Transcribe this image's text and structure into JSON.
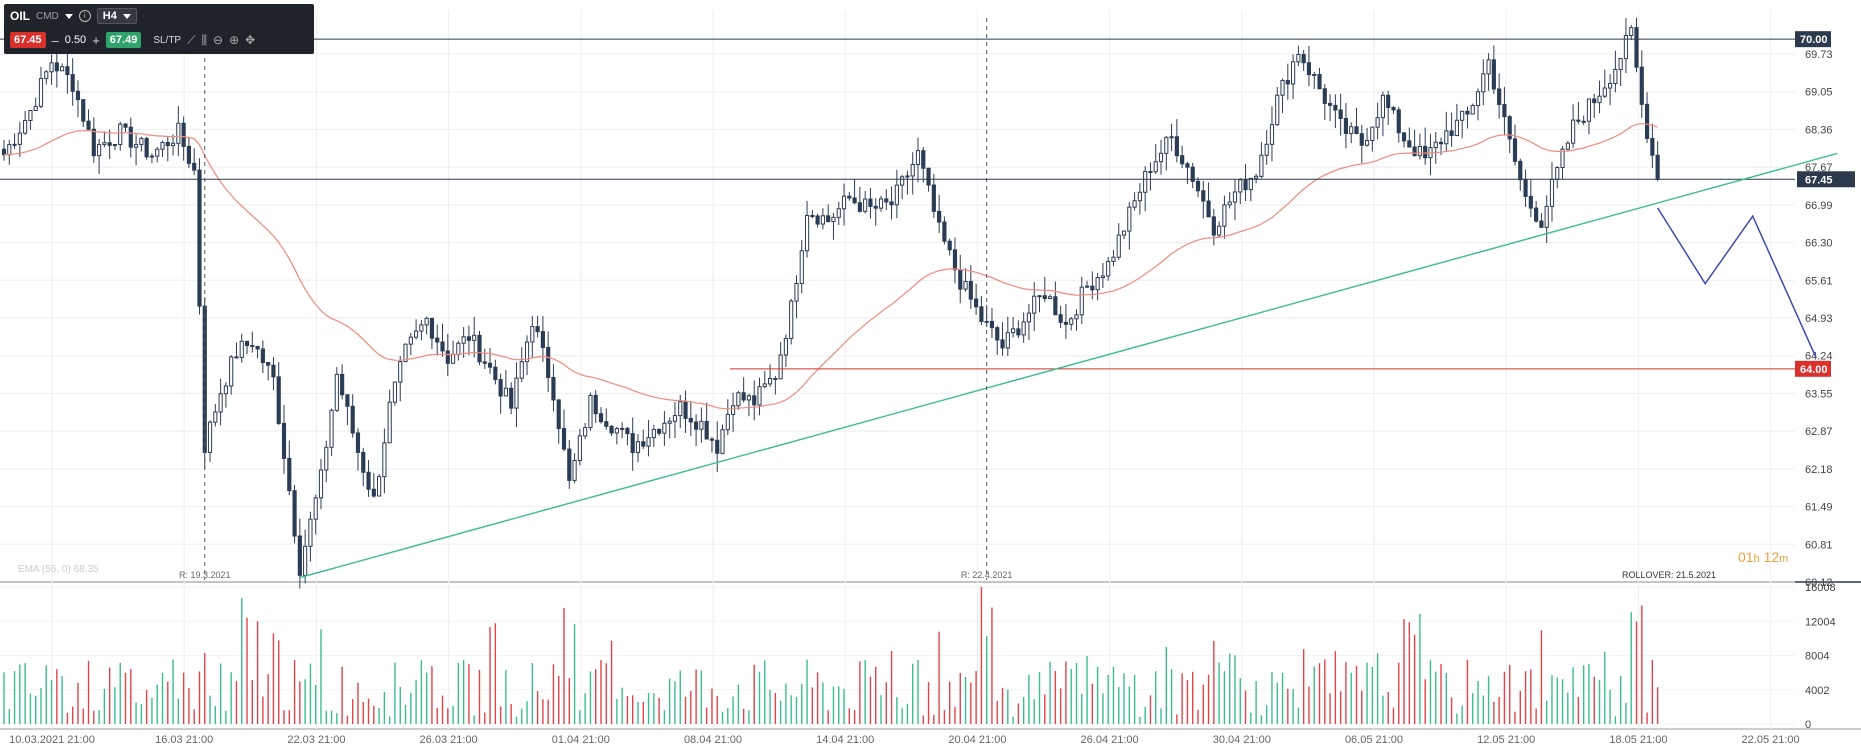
{
  "toolbar": {
    "symbol": "OIL",
    "type": "CMD",
    "timeframe": "H4",
    "sell_price": "67.45",
    "volume": "0.50",
    "buy_price": "67.49",
    "sltp_label": "SL/TP"
  },
  "countdown": {
    "hours": "01",
    "h_unit": "h",
    "minutes": "12",
    "m_unit": "m"
  },
  "colors": {
    "bull": "#2b3d55",
    "bear": "#2b3d55",
    "ema": "#f08a7e",
    "trendline": "#3dbd8e",
    "support": "#e0454a",
    "projection": "#3a4bb0",
    "vol_up": "#3dbd8e",
    "vol_down": "#e0454a",
    "price_label": "#2b3a4d",
    "level_red": "#d9302c"
  },
  "chart_data": {
    "type": "candlestick",
    "symbol": "OIL",
    "timeframe": "H4",
    "x_tick_labels": [
      "10.03.2021 21:00",
      "16.03 21:00",
      "22.03 21:00",
      "26.03 21:00",
      "01.04 21:00",
      "08.04 21:00",
      "14.04 21:00",
      "20.04 21:00",
      "26.04 21:00",
      "30.04 21:00",
      "06.05 21:00",
      "12.05 21:00",
      "18.05 21:00",
      "22.05 21:00"
    ],
    "y_tick_labels": [
      "69.73",
      "69.05",
      "68.36",
      "67.67",
      "66.99",
      "66.30",
      "65.61",
      "64.93",
      "64.24",
      "63.55",
      "62.87",
      "62.18",
      "61.49",
      "60.81",
      "60.12"
    ],
    "ylim": [
      60.12,
      70.2
    ],
    "volume_tick_labels": [
      "16008",
      "12004",
      "8004",
      "4002",
      "0"
    ],
    "volume_ylim": [
      0,
      16008
    ],
    "current_price": "67.45",
    "levels": [
      {
        "price": 70.0,
        "label": "70.00",
        "color": "#2b3a4d"
      },
      {
        "price": 64.0,
        "label": "64.00",
        "color": "#d9302c"
      },
      {
        "price": 67.45,
        "label": "67.45",
        "color": "#2b3a4d"
      }
    ],
    "rollover_markers": [
      {
        "label": "R: 19.3.2021",
        "bar_index": 38
      },
      {
        "label": "R: 22.4.2021",
        "bar_index": 186
      }
    ],
    "rollover_note": "ROLLOVER: 21.5.2021",
    "ema_label": "EMA (55, 0) 68.35",
    "trendline": {
      "from": {
        "bar_index": 56,
        "price": 60.2
      },
      "to": {
        "bar_index": 347,
        "price": 67.92
      }
    },
    "projection": [
      {
        "bar_index": 313,
        "price": 66.93
      },
      {
        "bar_index": 322,
        "price": 65.55
      },
      {
        "bar_index": 331,
        "price": 66.78
      },
      {
        "bar_index": 343,
        "price": 64.2
      }
    ],
    "series": [
      {
        "waypoints": [
          [
            0,
            67.9
          ],
          [
            5,
            68.7
          ],
          [
            9,
            69.6
          ],
          [
            13,
            69.2
          ],
          [
            17,
            68.0
          ],
          [
            22,
            68.3
          ],
          [
            28,
            67.9
          ],
          [
            33,
            68.3
          ],
          [
            36,
            67.6
          ],
          [
            37,
            65.2
          ],
          [
            38,
            62.6
          ],
          [
            41,
            63.6
          ],
          [
            44,
            64.3
          ],
          [
            47,
            64.5
          ],
          [
            51,
            63.8
          ],
          [
            54,
            61.8
          ],
          [
            56,
            60.4
          ],
          [
            60,
            62.0
          ],
          [
            63,
            63.9
          ],
          [
            67,
            62.5
          ],
          [
            70,
            61.6
          ],
          [
            73,
            63.3
          ],
          [
            76,
            64.3
          ],
          [
            80,
            64.9
          ],
          [
            84,
            64.2
          ],
          [
            88,
            64.6
          ],
          [
            92,
            64.0
          ],
          [
            96,
            63.3
          ],
          [
            100,
            64.9
          ],
          [
            104,
            63.6
          ],
          [
            107,
            61.9
          ],
          [
            111,
            63.4
          ],
          [
            115,
            63.0
          ],
          [
            119,
            62.6
          ],
          [
            123,
            62.9
          ],
          [
            128,
            63.3
          ],
          [
            132,
            63.0
          ],
          [
            135,
            62.6
          ],
          [
            138,
            63.5
          ],
          [
            142,
            63.4
          ],
          [
            146,
            63.9
          ],
          [
            149,
            65.1
          ],
          [
            152,
            66.9
          ],
          [
            156,
            66.7
          ],
          [
            160,
            67.1
          ],
          [
            164,
            66.9
          ],
          [
            168,
            67.0
          ],
          [
            173,
            67.9
          ],
          [
            177,
            66.5
          ],
          [
            181,
            65.6
          ],
          [
            185,
            64.9
          ],
          [
            189,
            64.4
          ],
          [
            193,
            64.9
          ],
          [
            197,
            65.4
          ],
          [
            201,
            64.8
          ],
          [
            205,
            65.5
          ],
          [
            209,
            65.9
          ],
          [
            213,
            66.8
          ],
          [
            217,
            67.7
          ],
          [
            221,
            68.2
          ],
          [
            225,
            67.5
          ],
          [
            229,
            66.6
          ],
          [
            233,
            67.2
          ],
          [
            237,
            67.6
          ],
          [
            241,
            68.9
          ],
          [
            245,
            69.8
          ],
          [
            249,
            69.1
          ],
          [
            253,
            68.4
          ],
          [
            257,
            68.1
          ],
          [
            261,
            68.9
          ],
          [
            265,
            68.2
          ],
          [
            269,
            67.8
          ],
          [
            273,
            68.3
          ],
          [
            277,
            68.6
          ],
          [
            281,
            69.6
          ],
          [
            285,
            68.1
          ],
          [
            288,
            67.1
          ],
          [
            291,
            66.7
          ],
          [
            293,
            67.3
          ],
          [
            297,
            68.4
          ],
          [
            301,
            68.9
          ],
          [
            305,
            69.5
          ],
          [
            308,
            70.1
          ],
          [
            310,
            68.8
          ],
          [
            313,
            67.45
          ]
        ],
        "volume_profile": "bars 0-313, sampled 600-16008, peaks near bars 45, 60, 107, 186, 265, 309"
      }
    ]
  }
}
